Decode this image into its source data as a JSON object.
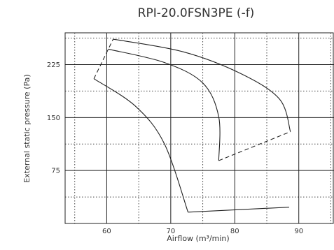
{
  "chart_data": {
    "type": "line",
    "title": "RPI-20.0FSN3PE (-f)",
    "xlabel": "Airflow (m³/min)",
    "ylabel": "External static pressure (Pa)",
    "xlim": [
      53.5,
      95.5
    ],
    "ylim": [
      0,
      270
    ],
    "xticks": [
      60,
      70,
      80,
      90
    ],
    "yticks": [
      75,
      150,
      225
    ],
    "grid": {
      "solid_x": [
        60,
        70,
        80,
        90
      ],
      "solid_y": [
        75,
        150,
        225
      ],
      "dotted_x": [
        55,
        65,
        75,
        85,
        95
      ],
      "dotted_y": [
        37.5,
        112.5,
        187.5,
        262.5
      ]
    },
    "series": [
      {
        "values": [
          [
            61.0,
            261
          ],
          [
            72.0,
            243
          ],
          [
            81.0,
            212
          ],
          [
            87.0,
            176
          ],
          [
            88.7,
            130
          ]
        ]
      },
      {
        "values": [
          [
            60.2,
            247
          ],
          [
            69.0,
            228
          ],
          [
            75.0,
            199
          ],
          [
            77.5,
            151
          ],
          [
            77.5,
            89
          ]
        ]
      },
      {
        "values": [
          [
            58.0,
            205
          ],
          [
            64.5,
            166
          ],
          [
            69.0,
            113
          ],
          [
            72.7,
            16
          ]
        ]
      },
      {
        "values": [
          [
            72.7,
            16
          ],
          [
            88.5,
            23
          ]
        ]
      },
      {
        "values": [
          [
            58.0,
            205
          ],
          [
            61.0,
            261
          ]
        ],
        "dashed": true
      },
      {
        "values": [
          [
            77.5,
            89
          ],
          [
            88.7,
            130
          ]
        ],
        "dashed": true
      }
    ]
  }
}
